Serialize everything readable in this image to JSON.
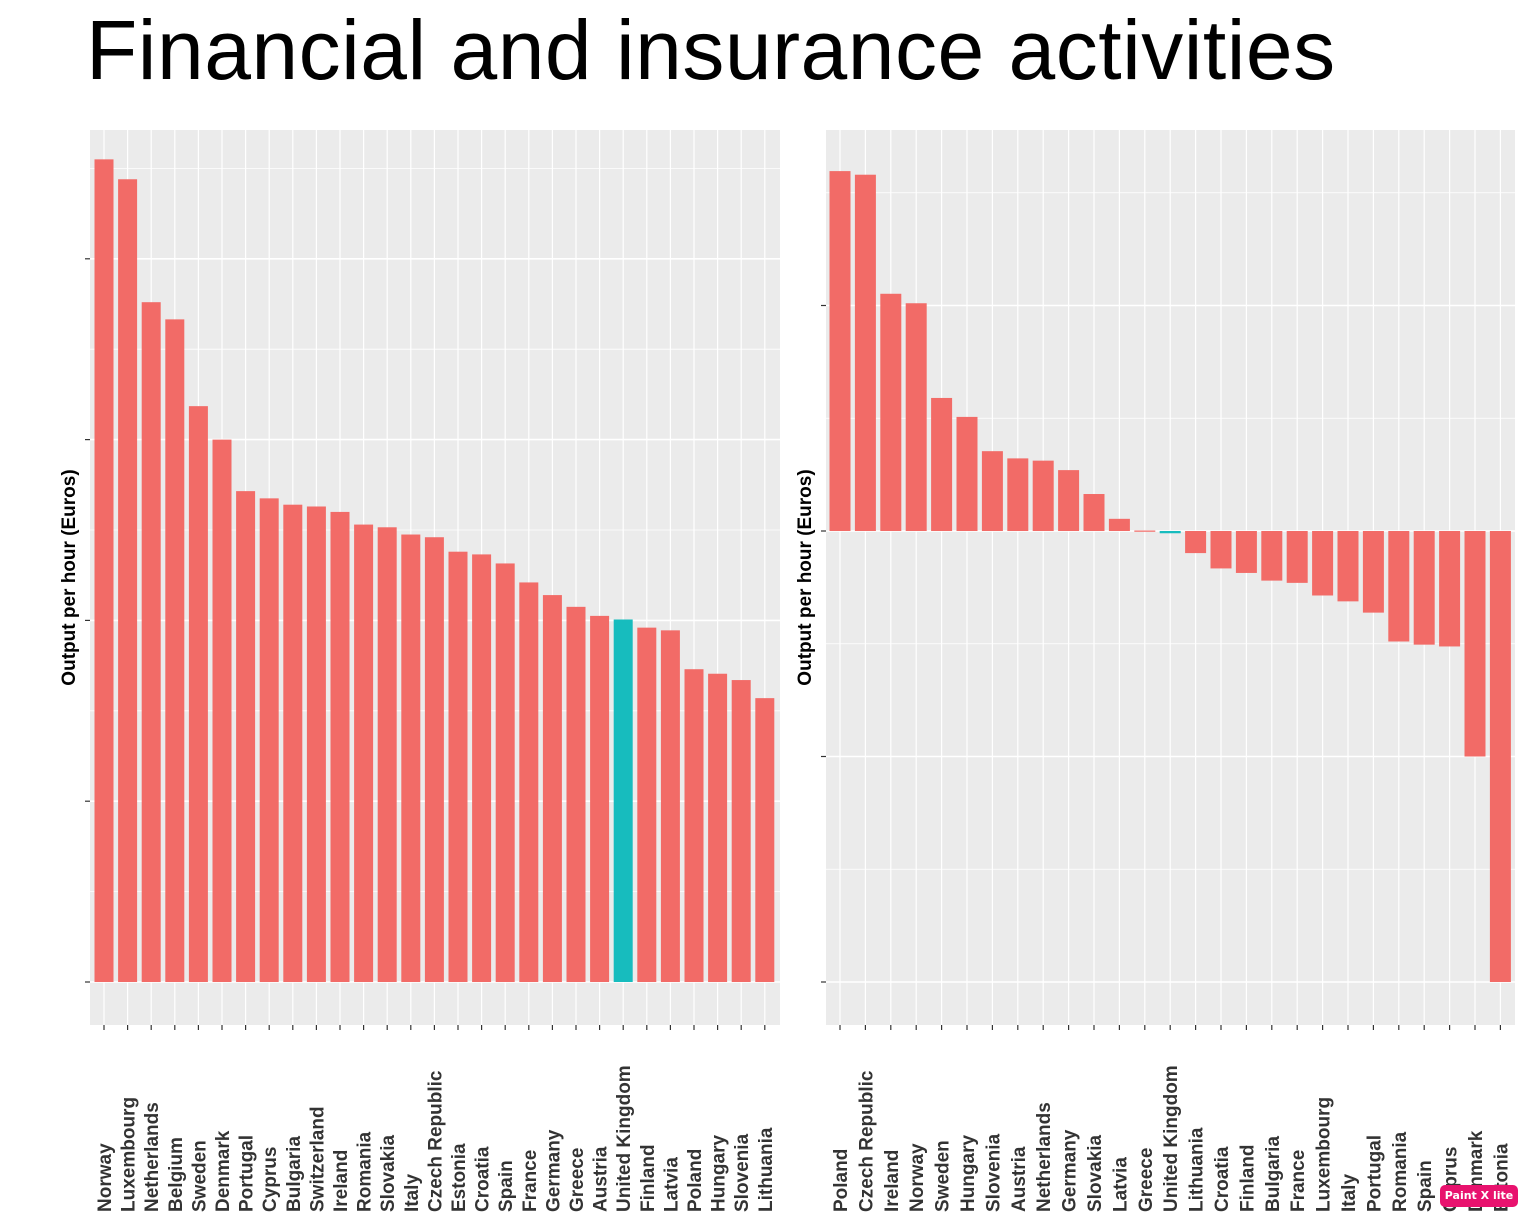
{
  "title": "Financial and insurance activities",
  "watermark": "Paint X lite",
  "colors": {
    "panel_bg": "#EBEBEB",
    "grid": "#FFFFFF",
    "bar": "#F26B67",
    "highlight": "#17BCBE",
    "watermark": "#E8126E"
  },
  "chart_data": [
    {
      "type": "bar",
      "title": "",
      "xlabel": "",
      "ylabel": "Output per hour (Euros)",
      "ylim": [
        0,
        1
      ],
      "y_tick_labels_visible": false,
      "grid": true,
      "highlight_category": "United Kingdom",
      "categories": [
        "Norway",
        "Luxembourg",
        "Netherlands",
        "Belgium",
        "Sweden",
        "Denmark",
        "Portugal",
        "Cyprus",
        "Bulgaria",
        "Switzerland",
        "Ireland",
        "Romania",
        "Slovakia",
        "Italy",
        "Czech Republic",
        "Estonia",
        "Croatia",
        "Spain",
        "France",
        "Germany",
        "Greece",
        "Austria",
        "United Kingdom",
        "Finland",
        "Latvia",
        "Poland",
        "Hungary",
        "Slovenia",
        "Lithuania"
      ],
      "values": [
        0.91,
        0.888,
        0.752,
        0.733,
        0.637,
        0.6,
        0.543,
        0.535,
        0.528,
        0.526,
        0.52,
        0.506,
        0.503,
        0.495,
        0.492,
        0.476,
        0.473,
        0.463,
        0.442,
        0.428,
        0.415,
        0.405,
        0.401,
        0.392,
        0.389,
        0.346,
        0.341,
        0.334,
        0.314
      ]
    },
    {
      "type": "bar",
      "title": "",
      "xlabel": "",
      "ylabel": "Output per hour (Euros)",
      "ylim": [
        -1.0,
        0.87
      ],
      "y_tick_labels_visible": false,
      "grid": true,
      "highlight_category": "United Kingdom",
      "categories": [
        "Poland",
        "Czech Republic",
        "Ireland",
        "Norway",
        "Sweden",
        "Hungary",
        "Slovenia",
        "Austria",
        "Netherlands",
        "Germany",
        "Slovakia",
        "Latvia",
        "Greece",
        "United Kingdom",
        "Lithuania",
        "Croatia",
        "Finland",
        "Bulgaria",
        "France",
        "Luxembourg",
        "Italy",
        "Portugal",
        "Romania",
        "Spain",
        "Cyprus",
        "Denmark",
        "Estonia"
      ],
      "values": [
        0.798,
        0.79,
        0.526,
        0.505,
        0.295,
        0.253,
        0.177,
        0.161,
        0.156,
        0.135,
        0.082,
        0.027,
        0.001,
        -0.005,
        -0.049,
        -0.083,
        -0.093,
        -0.11,
        -0.115,
        -0.143,
        -0.156,
        -0.181,
        -0.245,
        -0.252,
        -0.256,
        -0.5,
        -1.0
      ]
    }
  ]
}
